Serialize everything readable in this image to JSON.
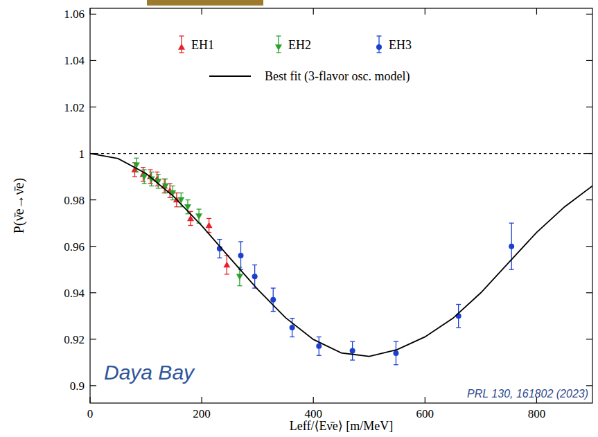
{
  "chart_data": {
    "type": "scatter",
    "xlabel": "Leff/⟨Eν̄e⟩ [m/MeV]",
    "ylabel": "P(ν̄e→ν̄e)",
    "xlim": [
      0,
      900
    ],
    "ylim": [
      0.8925,
      1.0625
    ],
    "xticks": [
      0,
      200,
      400,
      600,
      800
    ],
    "yticks": [
      0.9,
      0.92,
      0.94,
      0.96,
      0.98,
      1,
      1.02,
      1.04,
      1.06
    ],
    "grid": false,
    "legend": "top",
    "reference_line": {
      "y": 1,
      "line_style": "dashed"
    },
    "annotations": [
      {
        "text": "Daya Bay"
      },
      {
        "text": "PRL 130, 161802 (2023)"
      }
    ],
    "series": [
      {
        "name": "EH1",
        "type": "scatter",
        "color": "#e8202a",
        "marker": "triangle-up",
        "x": [
          80,
          95,
          108,
          120,
          133,
          143,
          155,
          180,
          213,
          245
        ],
        "values": [
          0.993,
          0.991,
          0.99,
          0.989,
          0.986,
          0.984,
          0.98,
          0.972,
          0.969,
          0.952
        ],
        "errors": [
          0.003,
          0.003,
          0.003,
          0.003,
          0.003,
          0.003,
          0.003,
          0.003,
          0.003,
          0.004
        ]
      },
      {
        "name": "EH2",
        "type": "scatter",
        "color": "#2ca02c",
        "marker": "triangle-down",
        "x": [
          83,
          97,
          110,
          122,
          135,
          148,
          163,
          175,
          195,
          268
        ],
        "values": [
          0.995,
          0.99,
          0.989,
          0.988,
          0.986,
          0.983,
          0.98,
          0.977,
          0.973,
          0.947
        ],
        "errors": [
          0.003,
          0.003,
          0.003,
          0.003,
          0.003,
          0.003,
          0.003,
          0.003,
          0.003,
          0.004
        ]
      },
      {
        "name": "EH3",
        "type": "scatter",
        "color": "#1c3fd1",
        "marker": "circle",
        "x": [
          232,
          270,
          295,
          328,
          362,
          410,
          470,
          548,
          660,
          755
        ],
        "values": [
          0.959,
          0.956,
          0.947,
          0.937,
          0.925,
          0.917,
          0.915,
          0.914,
          0.93,
          0.96
        ],
        "errors": [
          0.004,
          0.006,
          0.005,
          0.005,
          0.004,
          0.004,
          0.004,
          0.005,
          0.005,
          0.01
        ]
      },
      {
        "name": "Best fit (3-flavor osc. model)",
        "type": "line",
        "color": "#000000",
        "line_style": "solid",
        "x": [
          0,
          50,
          100,
          150,
          200,
          250,
          300,
          350,
          400,
          450,
          500,
          550,
          600,
          650,
          700,
          750,
          800,
          850,
          900
        ],
        "values": [
          1.0,
          0.9978,
          0.9914,
          0.9814,
          0.9689,
          0.9551,
          0.9415,
          0.9293,
          0.9199,
          0.9141,
          0.9126,
          0.9155,
          0.921,
          0.929,
          0.94,
          0.953,
          0.966,
          0.977,
          0.986
        ]
      }
    ]
  }
}
